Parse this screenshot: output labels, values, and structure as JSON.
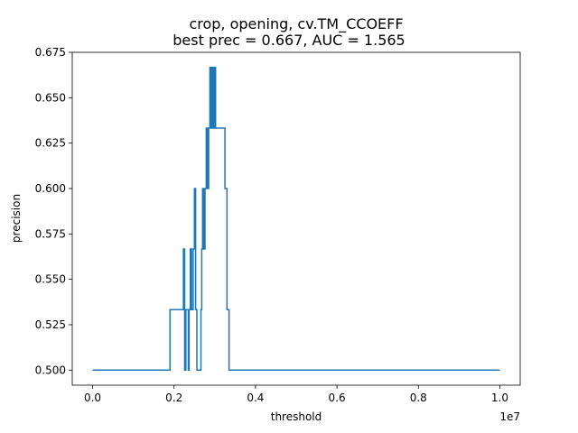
{
  "chart_data": {
    "type": "line",
    "title": "crop, opening, cv.TM_CCOEFF",
    "subtitle": "best prec = 0.667, AUC = 1.565",
    "xlabel": "threshold",
    "ylabel": "precision",
    "x_offset_label": "1e7",
    "x_scale": 10000000,
    "xlim": [
      -0.05,
      1.05
    ],
    "ylim": [
      0.4917,
      0.675
    ],
    "x_ticks": [
      0.0,
      0.2,
      0.4,
      0.6,
      0.8,
      1.0
    ],
    "x_tick_labels": [
      "0.0",
      "0.2",
      "0.4",
      "0.6",
      "0.8",
      "1.0"
    ],
    "y_ticks": [
      0.5,
      0.525,
      0.55,
      0.575,
      0.6,
      0.625,
      0.65,
      0.675
    ],
    "y_tick_labels": [
      "0.500",
      "0.525",
      "0.550",
      "0.575",
      "0.600",
      "0.625",
      "0.650",
      "0.675"
    ],
    "grid": false,
    "series_color": "#1f77b4",
    "series": [
      {
        "x": [
          0.0,
          0.19,
          0.19,
          0.223,
          0.223,
          0.226,
          0.226,
          0.229,
          0.229,
          0.235,
          0.235,
          0.237,
          0.237,
          0.24,
          0.24,
          0.243,
          0.243,
          0.247,
          0.247,
          0.25,
          0.25,
          0.253,
          0.253,
          0.256,
          0.256,
          0.266,
          0.266,
          0.268,
          0.268,
          0.27,
          0.27,
          0.273,
          0.273,
          0.276,
          0.276,
          0.279,
          0.279,
          0.282,
          0.282,
          0.285,
          0.285,
          0.288,
          0.288,
          0.291,
          0.291,
          0.294,
          0.294,
          0.297,
          0.297,
          0.3,
          0.3,
          0.302,
          0.302,
          0.325,
          0.325,
          0.33,
          0.33,
          0.335,
          0.335,
          1.0
        ],
        "y": [
          0.5,
          0.5,
          0.5333,
          0.5333,
          0.5667,
          0.5667,
          0.5,
          0.5,
          0.5333,
          0.5333,
          0.5,
          0.5,
          0.5333,
          0.5333,
          0.5667,
          0.5667,
          0.5333,
          0.5333,
          0.5667,
          0.5667,
          0.6,
          0.6,
          0.5333,
          0.5333,
          0.5,
          0.5,
          0.5333,
          0.5333,
          0.5667,
          0.5667,
          0.6,
          0.6,
          0.5667,
          0.5667,
          0.6,
          0.6,
          0.6333,
          0.6333,
          0.6,
          0.6,
          0.6333,
          0.6333,
          0.6667,
          0.6667,
          0.6333,
          0.6333,
          0.6667,
          0.6667,
          0.6333,
          0.6333,
          0.6667,
          0.6667,
          0.6333,
          0.6333,
          0.6,
          0.6,
          0.5333,
          0.5333,
          0.5,
          0.5
        ]
      }
    ]
  }
}
